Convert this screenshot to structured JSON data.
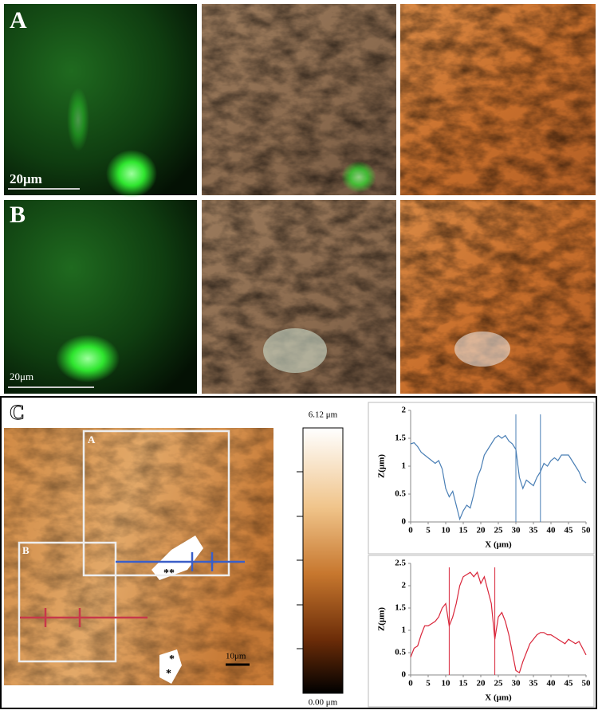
{
  "panels": {
    "A": {
      "label": "A",
      "scale_bar": "20μm"
    },
    "B": {
      "label": "B",
      "scale_bar": "20μm"
    },
    "C": {
      "label": "C",
      "box_a": "A",
      "box_b": "B",
      "mark_double": "**",
      "mark_single_1": "*",
      "mark_single_2": "*",
      "scale_bar": "10μm",
      "colorbar_max": "6.12 μm",
      "colorbar_min": "0.00 μm"
    }
  },
  "chart_data": [
    {
      "type": "line",
      "x_label": "X (μm)",
      "y_label": "Z(μm)",
      "x": [
        0,
        1,
        2,
        3,
        4,
        5,
        6,
        7,
        8,
        9,
        10,
        11,
        12,
        13,
        14,
        15,
        16,
        17,
        18,
        19,
        20,
        21,
        22,
        23,
        24,
        25,
        26,
        27,
        28,
        29,
        30,
        31,
        32,
        33,
        34,
        35,
        36,
        37,
        38,
        39,
        40,
        41,
        42,
        43,
        44,
        45,
        46,
        47,
        48,
        49,
        50
      ],
      "series": [
        {
          "color": "#4a7fb5",
          "values": [
            1.4,
            1.42,
            1.35,
            1.25,
            1.2,
            1.15,
            1.1,
            1.05,
            1.1,
            0.95,
            0.6,
            0.45,
            0.55,
            0.3,
            0.05,
            0.2,
            0.3,
            0.25,
            0.5,
            0.8,
            0.95,
            1.2,
            1.3,
            1.4,
            1.5,
            1.55,
            1.5,
            1.55,
            1.45,
            1.4,
            1.3,
            0.8,
            0.6,
            0.75,
            0.7,
            0.65,
            0.8,
            0.9,
            1.05,
            1.0,
            1.1,
            1.15,
            1.1,
            1.2,
            1.2,
            1.2,
            1.1,
            1.0,
            0.9,
            0.75,
            0.7
          ]
        }
      ],
      "markers": [
        30,
        37
      ],
      "xlim": [
        0,
        50
      ],
      "xticks": [
        0,
        5,
        10,
        15,
        20,
        25,
        30,
        35,
        40,
        45,
        50
      ],
      "ylim": [
        0,
        2
      ],
      "yticks": [
        0,
        0.5,
        1,
        1.5,
        2
      ]
    },
    {
      "type": "line",
      "x_label": "X (μm)",
      "y_label": "Z(μm)",
      "x": [
        0,
        1,
        2,
        3,
        4,
        5,
        6,
        7,
        8,
        9,
        10,
        11,
        12,
        13,
        14,
        15,
        16,
        17,
        18,
        19,
        20,
        21,
        22,
        23,
        24,
        25,
        26,
        27,
        28,
        29,
        30,
        31,
        32,
        33,
        34,
        35,
        36,
        37,
        38,
        39,
        40,
        41,
        42,
        43,
        44,
        45,
        46,
        47,
        48,
        49,
        50
      ],
      "series": [
        {
          "color": "#d9263a",
          "values": [
            0.4,
            0.6,
            0.65,
            0.9,
            1.1,
            1.1,
            1.15,
            1.2,
            1.3,
            1.5,
            1.6,
            1.1,
            1.3,
            1.6,
            2.0,
            2.2,
            2.25,
            2.3,
            2.2,
            2.3,
            2.05,
            2.2,
            1.9,
            1.6,
            0.8,
            1.3,
            1.4,
            1.2,
            0.9,
            0.5,
            0.1,
            0.05,
            0.3,
            0.5,
            0.7,
            0.8,
            0.9,
            0.95,
            0.95,
            0.9,
            0.9,
            0.85,
            0.8,
            0.75,
            0.7,
            0.8,
            0.75,
            0.7,
            0.75,
            0.6,
            0.45
          ]
        }
      ],
      "markers": [
        11,
        24
      ],
      "xlim": [
        0,
        50
      ],
      "xticks": [
        0,
        5,
        10,
        15,
        20,
        25,
        30,
        35,
        40,
        45,
        50
      ],
      "ylim": [
        0,
        2.5
      ],
      "yticks": [
        0,
        0.5,
        1,
        1.5,
        2,
        2.5
      ]
    }
  ]
}
